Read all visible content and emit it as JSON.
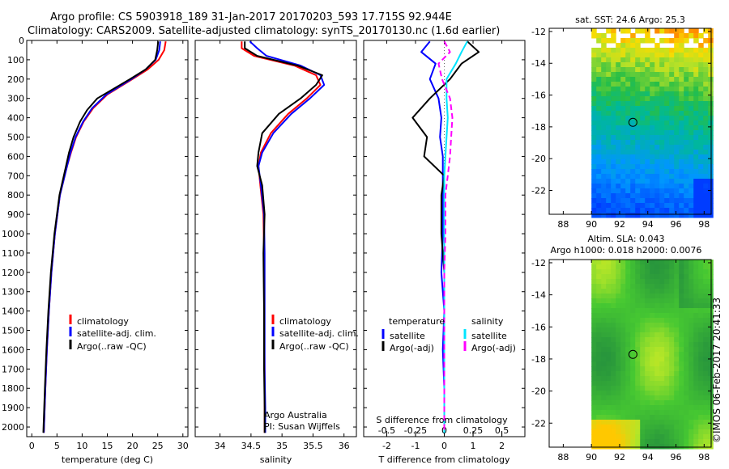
{
  "header": {
    "line1": "Argo profile: CS 5903918_189 31-Jan-2017 20170203_593 17.715S 92.944E",
    "line2": "Climatology: CARS2009. Satellite-adjusted climatology: synTS_20170130.nc (1.6d earlier)"
  },
  "colors": {
    "climatology": "#ff0000",
    "satellite": "#0000ff",
    "argo": "#000000",
    "sal_satellite": "#00e5ff",
    "sal_argo": "#ff00ff"
  },
  "depth_axis": {
    "ylim": [
      0,
      2050
    ],
    "ticks": [
      0,
      100,
      200,
      300,
      400,
      500,
      600,
      700,
      800,
      900,
      1000,
      1100,
      1200,
      1300,
      1400,
      1500,
      1600,
      1700,
      1800,
      1900,
      2000
    ]
  },
  "chart_data": [
    {
      "type": "line",
      "xlabel": "temperature (deg C)",
      "xlim": [
        -1,
        31
      ],
      "xticks": [
        0,
        5,
        10,
        15,
        20,
        25,
        30
      ],
      "legend": [
        "climatology",
        "satellite-adj. clim.",
        "Argo(..raw -QC)"
      ],
      "series": [
        {
          "name": "climatology",
          "x": [
            26.6,
            26.3,
            25.2,
            23.0,
            20.0,
            15.0,
            12.2,
            10.3,
            8.8,
            7.8,
            7.0,
            5.6,
            4.6,
            3.9,
            3.4,
            3.0,
            2.7,
            2.4
          ],
          "y": [
            5,
            50,
            100,
            150,
            200,
            280,
            350,
            420,
            500,
            580,
            650,
            800,
            1000,
            1200,
            1400,
            1600,
            1800,
            2030
          ]
        },
        {
          "name": "satellite-adj. clim.",
          "x": [
            25.5,
            25.3,
            24.6,
            22.6,
            19.8,
            14.8,
            12.0,
            10.2,
            8.7,
            7.7,
            7.0,
            5.6,
            4.6,
            3.9,
            3.4,
            3.0,
            2.7,
            2.4
          ],
          "y": [
            5,
            50,
            100,
            150,
            200,
            280,
            350,
            420,
            500,
            580,
            650,
            800,
            1000,
            1200,
            1400,
            1600,
            1800,
            2030
          ]
        },
        {
          "name": "Argo(..raw -QC)",
          "x": [
            25.1,
            24.9,
            24.5,
            22.6,
            19.5,
            13.0,
            11.0,
            9.6,
            8.3,
            7.4,
            6.8,
            5.5,
            4.5,
            3.8,
            3.3,
            2.9,
            2.6,
            2.3
          ],
          "y": [
            5,
            50,
            100,
            150,
            200,
            300,
            360,
            420,
            500,
            580,
            650,
            800,
            1000,
            1200,
            1400,
            1600,
            1800,
            2030
          ]
        }
      ]
    },
    {
      "type": "line",
      "xlabel": "salinity",
      "xlim": [
        33.6,
        36.2
      ],
      "xticks": [
        34,
        34.5,
        35,
        35.5,
        36
      ],
      "xtick_labels": [
        "34",
        "34.5",
        "35",
        "35.5",
        "36"
      ],
      "legend": [
        "climatology",
        "satellite-adj. clim.",
        "Argo(..raw -QC)"
      ],
      "series": [
        {
          "name": "climatology",
          "x": [
            34.35,
            34.35,
            34.55,
            35.2,
            35.55,
            35.62,
            35.4,
            35.1,
            34.82,
            34.66,
            34.62,
            34.65,
            34.7,
            34.71,
            34.71,
            34.72,
            34.72,
            34.72
          ],
          "y": [
            5,
            40,
            80,
            130,
            180,
            230,
            300,
            380,
            480,
            580,
            650,
            750,
            900,
            1100,
            1400,
            1700,
            1900,
            2030
          ]
        },
        {
          "name": "satellite-adj. clim.",
          "x": [
            34.48,
            34.6,
            34.75,
            35.3,
            35.62,
            35.68,
            35.45,
            35.15,
            34.86,
            34.68,
            34.62,
            34.66,
            34.71,
            34.72,
            34.72,
            34.72,
            34.73,
            34.73
          ],
          "y": [
            5,
            40,
            80,
            130,
            180,
            230,
            300,
            380,
            480,
            580,
            650,
            750,
            900,
            1100,
            1400,
            1700,
            1900,
            2030
          ]
        },
        {
          "name": "Argo(..raw -QC)",
          "x": [
            34.4,
            34.4,
            34.6,
            35.25,
            35.65,
            35.55,
            35.3,
            34.95,
            34.68,
            34.62,
            34.6,
            34.68,
            34.72,
            34.7,
            34.71,
            34.71,
            34.72,
            34.72
          ],
          "y": [
            5,
            40,
            80,
            130,
            180,
            230,
            300,
            380,
            480,
            580,
            650,
            750,
            900,
            1100,
            1400,
            1700,
            1900,
            2030
          ]
        }
      ]
    },
    {
      "type": "line",
      "xlabel": "T difference from climatology",
      "x2label": "S difference from climatology",
      "xlim": [
        -2.8,
        2.8
      ],
      "xticks": [
        -2,
        -1,
        0,
        1,
        2
      ],
      "x2lim": [
        -0.7,
        0.7
      ],
      "x2ticks": [
        -0.5,
        -0.25,
        0,
        0.25,
        0.5
      ],
      "x2tick_labels": [
        "-0.5",
        "-0.25",
        "0",
        "0.25",
        "0.5"
      ],
      "legend_headers": [
        "temperature",
        "salinity"
      ],
      "legend": [
        "satellite",
        "Argo(-adj)",
        "satellite",
        "Argo(-adj)"
      ],
      "series": [
        {
          "name": "satellite",
          "x": [
            -0.5,
            -0.8,
            -0.3,
            -0.5,
            -0.2,
            -0.1,
            -0.15,
            -0.05,
            -0.05,
            -0.05,
            -0.05,
            -0.1,
            0,
            -0.05,
            0,
            0
          ],
          "y": [
            5,
            60,
            120,
            200,
            300,
            400,
            500,
            600,
            700,
            800,
            1000,
            1200,
            1400,
            1600,
            1800,
            2030
          ]
        },
        {
          "name": "Argo(-adj)",
          "x": [
            0.8,
            1.2,
            0.6,
            0.2,
            -0.5,
            -1.1,
            -0.6,
            -0.7,
            0,
            -0.1,
            -0.1,
            0,
            0,
            0,
            0,
            0
          ],
          "y": [
            5,
            60,
            120,
            200,
            300,
            400,
            500,
            600,
            700,
            800,
            1000,
            1200,
            1400,
            1600,
            1800,
            2030
          ]
        },
        {
          "name": "satellite",
          "x": [
            0.2,
            0.15,
            0.1,
            0.02,
            0.02,
            0.03,
            0.02,
            0.01,
            0,
            0,
            0,
            0,
            0,
            0,
            0,
            0
          ],
          "y": [
            5,
            60,
            120,
            200,
            300,
            400,
            500,
            600,
            700,
            800,
            1000,
            1200,
            1400,
            1600,
            1800,
            2030
          ]
        },
        {
          "name": "Argo(-adj)",
          "x": [
            0.0,
            0.05,
            -0.05,
            -0.02,
            0.05,
            0.07,
            0.06,
            0.05,
            0.03,
            0.01,
            0.01,
            0,
            0,
            0,
            0,
            0
          ],
          "y": [
            5,
            60,
            120,
            200,
            300,
            400,
            500,
            600,
            700,
            800,
            1000,
            1200,
            1400,
            1600,
            1800,
            2030
          ]
        }
      ]
    },
    {
      "type": "heatmap",
      "title": "sat. SST: 24.6  Argo: 25.3",
      "xlim": [
        87,
        98.5
      ],
      "ylim": [
        -23.5,
        -11.8
      ],
      "xticks": [
        88,
        90,
        92,
        94,
        96,
        98
      ],
      "yticks": [
        -12,
        -14,
        -16,
        -18,
        -20,
        -22
      ],
      "data_lon_range": [
        90,
        98.5
      ],
      "argo_position": [
        92.944,
        -17.715
      ]
    },
    {
      "type": "heatmap",
      "title": "Altim. SLA: 0.043",
      "subtitle": "Argo h1000: 0.018 h2000: 0.0076",
      "xlim": [
        87,
        98.5
      ],
      "ylim": [
        -23.5,
        -11.8
      ],
      "xticks": [
        88,
        90,
        92,
        94,
        96,
        98
      ],
      "yticks": [
        -12,
        -14,
        -16,
        -18,
        -20,
        -22
      ],
      "data_lon_range": [
        90,
        98.5
      ],
      "argo_position": [
        92.944,
        -17.715
      ]
    }
  ],
  "footer": {
    "credit1": "Argo Australia",
    "credit2": "PI: Susan Wijffels",
    "stamp": "©IMOS 06-Feb-2017 20:41:33"
  }
}
